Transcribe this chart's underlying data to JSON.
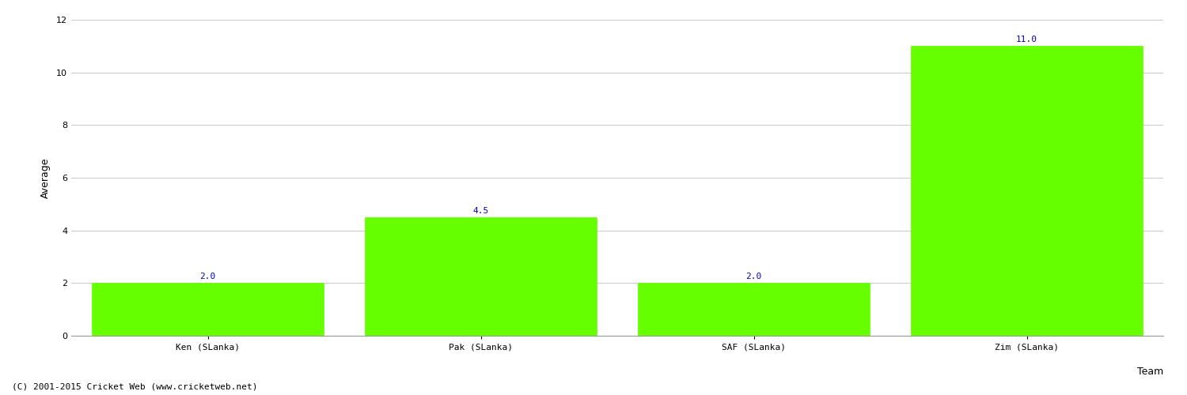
{
  "categories": [
    "Ken (SLanka)",
    "Pak (SLanka)",
    "SAF (SLanka)",
    "Zim (SLanka)"
  ],
  "values": [
    2.0,
    4.5,
    2.0,
    11.0
  ],
  "bar_color": "#66ff00",
  "bar_edge_color": "#66ff00",
  "label_color": "#0000cc",
  "xlabel": "Team",
  "ylabel": "Average",
  "ylim": [
    0,
    12
  ],
  "yticks": [
    0,
    2,
    4,
    6,
    8,
    10,
    12
  ],
  "grid_color": "#cccccc",
  "background_color": "#ffffff",
  "label_fontsize": 8,
  "axis_label_fontsize": 9,
  "tick_label_fontsize": 8,
  "footer_text": "(C) 2001-2015 Cricket Web (www.cricketweb.net)",
  "footer_fontsize": 8,
  "bar_width": 0.85
}
